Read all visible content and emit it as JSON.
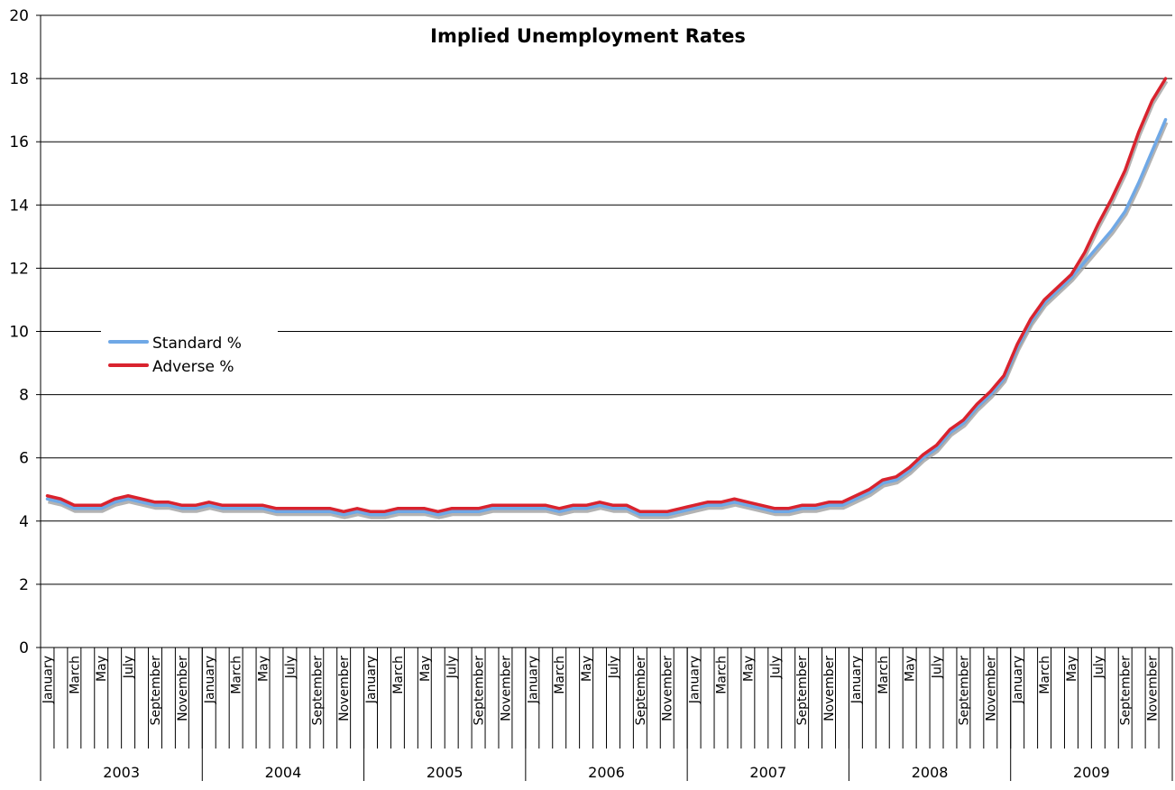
{
  "chart_data": {
    "type": "line",
    "title": "Implied Unemployment Rates",
    "xlabel": "",
    "ylabel": "",
    "ylim": [
      0,
      20
    ],
    "yticks": [
      0,
      2,
      4,
      6,
      8,
      10,
      12,
      14,
      16,
      18,
      20
    ],
    "grid": true,
    "legend_position": "left",
    "month_labels": [
      "January",
      "March",
      "May",
      "July",
      "September",
      "November"
    ],
    "years": [
      "2003",
      "2004",
      "2005",
      "2006",
      "2007",
      "2008",
      "2009"
    ],
    "series": [
      {
        "name": "Standard %",
        "color": "#6fa8e6",
        "values": [
          4.7,
          4.6,
          4.4,
          4.4,
          4.4,
          4.6,
          4.7,
          4.6,
          4.5,
          4.5,
          4.4,
          4.4,
          4.5,
          4.4,
          4.4,
          4.4,
          4.4,
          4.3,
          4.3,
          4.3,
          4.3,
          4.3,
          4.2,
          4.3,
          4.2,
          4.2,
          4.3,
          4.3,
          4.3,
          4.2,
          4.3,
          4.3,
          4.3,
          4.4,
          4.4,
          4.4,
          4.4,
          4.4,
          4.3,
          4.4,
          4.4,
          4.5,
          4.4,
          4.4,
          4.2,
          4.2,
          4.2,
          4.3,
          4.4,
          4.5,
          4.5,
          4.6,
          4.5,
          4.4,
          4.3,
          4.3,
          4.4,
          4.4,
          4.5,
          4.5,
          4.7,
          4.9,
          5.2,
          5.3,
          5.6,
          6.0,
          6.3,
          6.8,
          7.1,
          7.6,
          8.0,
          8.5,
          9.5,
          10.3,
          10.9,
          11.3,
          11.7,
          12.2,
          12.7,
          13.2,
          13.8,
          14.7,
          15.7,
          16.7
        ]
      },
      {
        "name": "Adverse %",
        "color": "#d9232e",
        "values": [
          4.8,
          4.7,
          4.5,
          4.5,
          4.5,
          4.7,
          4.8,
          4.7,
          4.6,
          4.6,
          4.5,
          4.5,
          4.6,
          4.5,
          4.5,
          4.5,
          4.5,
          4.4,
          4.4,
          4.4,
          4.4,
          4.4,
          4.3,
          4.4,
          4.3,
          4.3,
          4.4,
          4.4,
          4.4,
          4.3,
          4.4,
          4.4,
          4.4,
          4.5,
          4.5,
          4.5,
          4.5,
          4.5,
          4.4,
          4.5,
          4.5,
          4.6,
          4.5,
          4.5,
          4.3,
          4.3,
          4.3,
          4.4,
          4.5,
          4.6,
          4.6,
          4.7,
          4.6,
          4.5,
          4.4,
          4.4,
          4.5,
          4.5,
          4.6,
          4.6,
          4.8,
          5.0,
          5.3,
          5.4,
          5.7,
          6.1,
          6.4,
          6.9,
          7.2,
          7.7,
          8.1,
          8.6,
          9.6,
          10.4,
          11.0,
          11.4,
          11.8,
          12.5,
          13.4,
          14.2,
          15.1,
          16.3,
          17.3,
          18.0
        ]
      }
    ]
  }
}
